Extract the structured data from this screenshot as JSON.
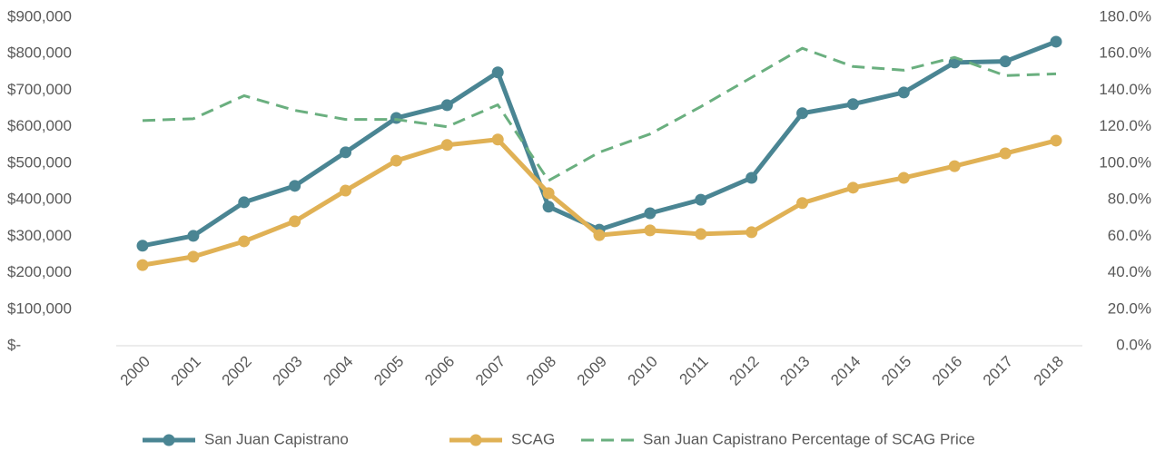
{
  "chart_data": {
    "type": "line",
    "categories": [
      "2000",
      "2001",
      "2002",
      "2003",
      "2004",
      "2005",
      "2006",
      "2007",
      "2008",
      "2009",
      "2010",
      "2011",
      "2012",
      "2013",
      "2014",
      "2015",
      "2016",
      "2017",
      "2018"
    ],
    "series": [
      {
        "name": "San Juan Capistrano",
        "color": "#4a8593",
        "marker": true,
        "dashed": false,
        "values": [
          274000,
          301000,
          393000,
          438000,
          530000,
          624000,
          659000,
          749000,
          381000,
          318000,
          363000,
          400000,
          460000,
          637000,
          662000,
          694000,
          776000,
          779000,
          833000
        ]
      },
      {
        "name": "SCAG",
        "color": "#e0b155",
        "marker": true,
        "dashed": false,
        "values": [
          221000,
          244000,
          286000,
          341000,
          425000,
          507000,
          550000,
          565000,
          418000,
          303000,
          316000,
          306000,
          311000,
          391000,
          433000,
          460000,
          492000,
          527000,
          562000
        ]
      },
      {
        "name": "San Juan Capistrano Percentage of SCAG Price",
        "color": "#6aaf7f",
        "marker": false,
        "dashed": true,
        "axis": "y2",
        "values": [
          123.4,
          124.4,
          137,
          129,
          124,
          124,
          120,
          132,
          90.5,
          106,
          116,
          131,
          147,
          163,
          153,
          151,
          158,
          148,
          149
        ]
      }
    ],
    "ylim": [
      0,
      900000
    ],
    "yticks": [
      {
        "value": 0,
        "label": "$-"
      },
      {
        "value": 100000,
        "label": "$100,000"
      },
      {
        "value": 200000,
        "label": "$200,000"
      },
      {
        "value": 300000,
        "label": "$300,000"
      },
      {
        "value": 400000,
        "label": "$400,000"
      },
      {
        "value": 500000,
        "label": "$500,000"
      },
      {
        "value": 600000,
        "label": "$600,000"
      },
      {
        "value": 700000,
        "label": "$700,000"
      },
      {
        "value": 800000,
        "label": "$800,000"
      },
      {
        "value": 900000,
        "label": "$900,000"
      }
    ],
    "y2lim": [
      0,
      180
    ],
    "y2ticks": [
      {
        "value": 0,
        "label": "0.0%"
      },
      {
        "value": 20,
        "label": "20.0%"
      },
      {
        "value": 40,
        "label": "40.0%"
      },
      {
        "value": 60,
        "label": "60.0%"
      },
      {
        "value": 80,
        "label": "80.0%"
      },
      {
        "value": 100,
        "label": "100.0%"
      },
      {
        "value": 120,
        "label": "120.0%"
      },
      {
        "value": 140,
        "label": "140.0%"
      },
      {
        "value": 160,
        "label": "160.0%"
      },
      {
        "value": 180,
        "label": "180.0%"
      }
    ],
    "grid": false,
    "legend": "bottom"
  }
}
